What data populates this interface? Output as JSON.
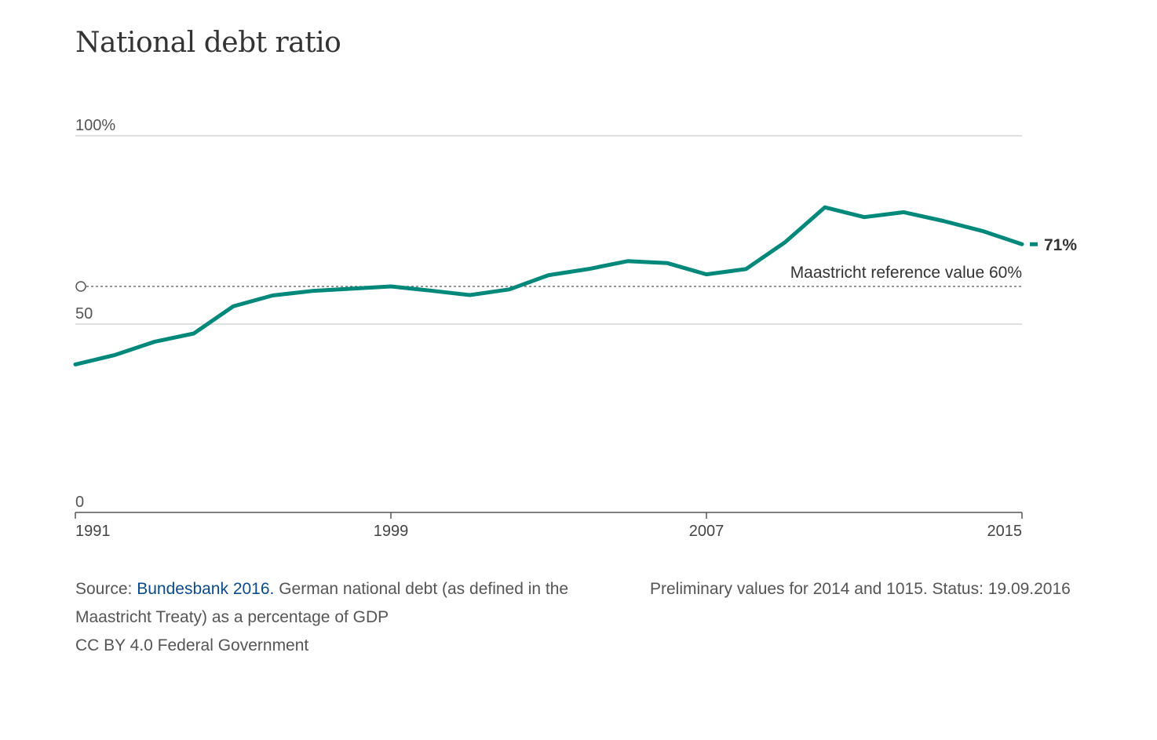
{
  "chart_data": {
    "type": "line",
    "title": "National debt ratio",
    "y_ticks": [
      {
        "value": 100,
        "label": "100%"
      },
      {
        "value": 50,
        "label": "50"
      },
      {
        "value": 0,
        "label": "0"
      }
    ],
    "x_ticks": [
      1991,
      1999,
      2007,
      2015
    ],
    "xlim": [
      1991,
      2015
    ],
    "ylim": [
      0,
      100
    ],
    "grid": true,
    "series": [
      {
        "color": "#00897b",
        "x": [
          1991,
          1992,
          1993,
          1994,
          1995,
          1996,
          1997,
          1998,
          1999,
          2000,
          2001,
          2002,
          2003,
          2004,
          2005,
          2006,
          2007,
          2008,
          2009,
          2010,
          2011,
          2012,
          2013,
          2014,
          2015
        ],
        "y": [
          39.3,
          41.8,
          45.3,
          47.5,
          54.7,
          57.6,
          58.8,
          59.4,
          60.0,
          58.9,
          57.7,
          59.2,
          63.0,
          64.6,
          66.7,
          66.2,
          63.2,
          64.6,
          71.8,
          81.0,
          78.4,
          79.7,
          77.4,
          74.7,
          71.2
        ]
      }
    ],
    "end_label": "71%",
    "reference_line": {
      "value": 60,
      "label": "Maastricht reference value 60%"
    }
  },
  "footer": {
    "source_prefix": "Source: ",
    "source_link": "Bundesbank 2016.",
    "source_text": " German national debt (as defined in the Maastricht Treaty) as a percentage of GDP",
    "license": "CC BY 4.0 Federal Government",
    "note": "Preliminary values for 2014 and 1015. Status: 19.09.2016"
  }
}
